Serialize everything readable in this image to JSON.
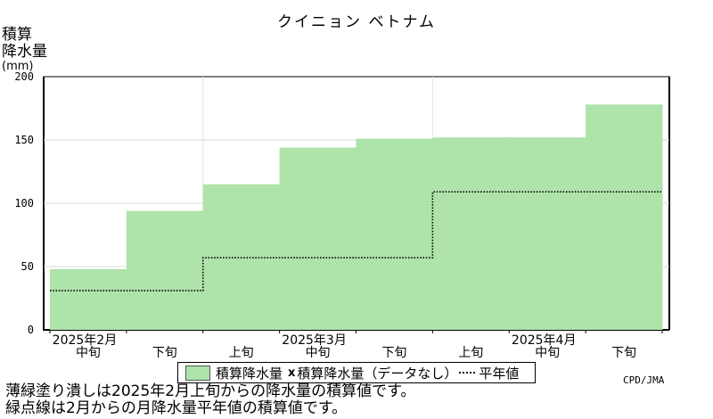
{
  "title": "クイニョン ベトナム",
  "ylabel_lines": [
    "積算",
    "降水量"
  ],
  "ylabel_unit": "(mm)",
  "credit": "CPD/JMA",
  "notes": [
    "薄緑塗り潰しは2025年2月上旬からの降水量の積算値です。",
    "緑点線は2月からの月降水量平年値の積算値です。"
  ],
  "legend": {
    "item1": "積算降水量",
    "marker2": "x",
    "item2": "積算降水量（データなし）",
    "item3": "平年値"
  },
  "chart_data": {
    "type": "area",
    "title": "クイニョン ベトナム",
    "ylabel": "積算降水量(mm)",
    "ylim": [
      0,
      200
    ],
    "yticks": [
      "0",
      "50",
      "100",
      "150",
      "200"
    ],
    "periods": [
      "2025年2月中旬",
      "2025年2月下旬",
      "2025年3月上旬",
      "2025年3月中旬",
      "2025年3月下旬",
      "2025年4月上旬",
      "2025年4月中旬",
      "2025年4月下旬"
    ],
    "x_labels": [
      {
        "month": "2025年2月",
        "dekad": "中旬"
      },
      {
        "month": "",
        "dekad": "下旬"
      },
      {
        "month": "",
        "dekad": "上旬"
      },
      {
        "month": "2025年3月",
        "dekad": "中旬"
      },
      {
        "month": "",
        "dekad": "下旬"
      },
      {
        "month": "",
        "dekad": "上旬"
      },
      {
        "month": "2025年4月",
        "dekad": "中旬"
      },
      {
        "month": "",
        "dekad": "下旬"
      }
    ],
    "series": [
      {
        "name": "積算降水量",
        "values": [
          48,
          94,
          115,
          144,
          151,
          152,
          152,
          178
        ],
        "color": "#aee3aa"
      },
      {
        "name": "平年値",
        "values": [
          31,
          31,
          57,
          57,
          57,
          109,
          109,
          109
        ],
        "color": "#000000",
        "style": "dotted"
      }
    ],
    "grid": true
  }
}
